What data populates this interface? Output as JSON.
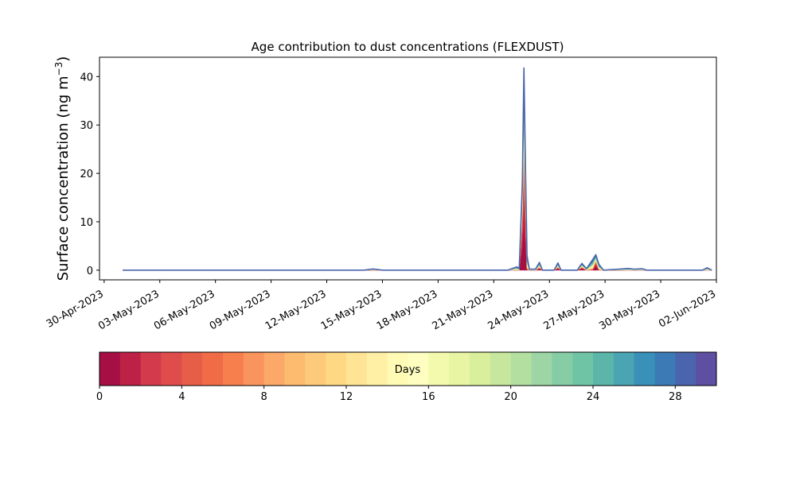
{
  "chart_data": {
    "type": "area",
    "title": "Age contribution to dust concentrations (FLEXDUST)",
    "ylabel_main": "Surface concentration (ng m",
    "ylabel_sup": "−3",
    "ylabel_close": ")",
    "xlabel": "",
    "ylim": [
      -2,
      44
    ],
    "yticks": [
      0,
      10,
      20,
      30,
      40
    ],
    "ytick_labels": [
      "0",
      "10",
      "20",
      "30",
      "40"
    ],
    "xlim": [
      "2023-04-29T18:00",
      "2023-06-02T00:00"
    ],
    "xticks": [
      "2023-04-30",
      "2023-05-03",
      "2023-05-06",
      "2023-05-09",
      "2023-05-12",
      "2023-05-15",
      "2023-05-18",
      "2023-05-21",
      "2023-05-24",
      "2023-05-27",
      "2023-05-30",
      "2023-06-02"
    ],
    "xtick_labels": [
      "30-Apr-2023",
      "03-May-2023",
      "06-May-2023",
      "09-May-2023",
      "12-May-2023",
      "15-May-2023",
      "18-May-2023",
      "21-May-2023",
      "24-May-2023",
      "27-May-2023",
      "30-May-2023",
      "02-Jun-2023"
    ],
    "grid": false,
    "data_range": [
      "2023-05-01",
      "2023-06-01T18:00"
    ],
    "series": [
      {
        "total": [
          [
            "2023-05-01T00:00",
            0.0
          ],
          [
            "2023-05-14T00:00",
            0.0
          ],
          [
            "2023-05-14T12:00",
            0.25
          ],
          [
            "2023-05-15T00:00",
            0.0
          ],
          [
            "2023-05-21T18:00",
            0.0
          ],
          [
            "2023-05-22T06:00",
            0.7
          ],
          [
            "2023-05-22T09:00",
            0.3
          ],
          [
            "2023-05-22T13:00",
            18.0
          ],
          [
            "2023-05-22T15:00",
            41.8
          ],
          [
            "2023-05-22T17:00",
            22.0
          ],
          [
            "2023-05-22T19:00",
            3.0
          ],
          [
            "2023-05-22T22:00",
            0.2
          ],
          [
            "2023-05-23T06:00",
            0.2
          ],
          [
            "2023-05-23T11:00",
            1.6
          ],
          [
            "2023-05-23T15:00",
            0.0
          ],
          [
            "2023-05-24T06:00",
            0.0
          ],
          [
            "2023-05-24T11:00",
            1.5
          ],
          [
            "2023-05-24T15:00",
            0.0
          ],
          [
            "2023-05-25T12:00",
            0.0
          ],
          [
            "2023-05-25T18:00",
            1.4
          ],
          [
            "2023-05-26T00:00",
            0.3
          ],
          [
            "2023-05-26T08:00",
            2.2
          ],
          [
            "2023-05-26T12:00",
            3.2
          ],
          [
            "2023-05-26T16:00",
            1.2
          ],
          [
            "2023-05-26T22:00",
            0.0
          ],
          [
            "2023-05-27T18:00",
            0.2
          ],
          [
            "2023-05-28T06:00",
            0.35
          ],
          [
            "2023-05-28T14:00",
            0.2
          ],
          [
            "2023-05-29T00:00",
            0.3
          ],
          [
            "2023-05-29T06:00",
            0.0
          ],
          [
            "2023-06-01T06:00",
            0.0
          ],
          [
            "2023-06-01T12:00",
            0.5
          ],
          [
            "2023-06-01T18:00",
            0.0
          ]
        ],
        "young_fraction": [
          [
            "2023-05-22T13:00",
            0.6
          ],
          [
            "2023-05-22T15:00",
            0.55
          ],
          [
            "2023-05-22T17:00",
            0.6
          ],
          [
            "2023-05-23T11:00",
            0.3
          ],
          [
            "2023-05-24T11:00",
            0.35
          ],
          [
            "2023-05-25T18:00",
            0.4
          ],
          [
            "2023-05-26T12:00",
            0.55
          ]
        ]
      }
    ],
    "colorbar": {
      "label": "Days",
      "min": 0,
      "max": 30,
      "ticks": [
        0,
        4,
        8,
        12,
        16,
        20,
        24,
        28
      ],
      "tick_labels": [
        "0",
        "4",
        "8",
        "12",
        "16",
        "20",
        "24",
        "28"
      ],
      "colors": [
        "#a50f43",
        "#bd2146",
        "#d33b4c",
        "#df4c4c",
        "#e75e48",
        "#f06c47",
        "#f77e4d",
        "#f9945e",
        "#fba868",
        "#fdbb70",
        "#fdca7b",
        "#fed883",
        "#fee494",
        "#fff0a6",
        "#fffbb5",
        "#fdfec0",
        "#f4faad",
        "#e8f5a3",
        "#d9ef9b",
        "#c6e79d",
        "#b3e0a0",
        "#9dd6a4",
        "#86cca5",
        "#70c4a6",
        "#5bb5a9",
        "#4aa4b3",
        "#3990b8",
        "#3c7ab5",
        "#4a65ad",
        "#5e4fa2"
      ]
    }
  }
}
